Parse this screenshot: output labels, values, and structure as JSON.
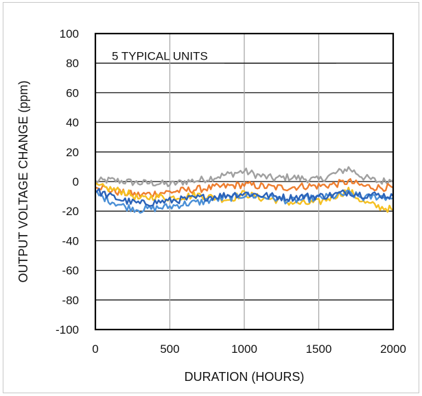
{
  "chart_data": {
    "type": "line",
    "title": "",
    "annotation": "5 TYPICAL UNITS",
    "xlabel": "DURATION (HOURS)",
    "ylabel": "OUTPUT VOLTAGE CHANGE (ppm)",
    "xlim": [
      0,
      2000
    ],
    "ylim": [
      -100,
      100
    ],
    "x_ticks": [
      "0",
      "500",
      "1000",
      "1500",
      "2000"
    ],
    "y_ticks": [
      "100",
      "80",
      "60",
      "40",
      "20",
      "0",
      "-20",
      "-40",
      "-60",
      "-80",
      "-100"
    ],
    "grid": true,
    "legend": "none",
    "x": [
      0,
      100,
      200,
      300,
      400,
      500,
      600,
      700,
      800,
      900,
      1000,
      1100,
      1200,
      1300,
      1400,
      1500,
      1600,
      1700,
      1800,
      1900,
      2000
    ],
    "series": [
      {
        "color": "#a0a0a0",
        "values": [
          0,
          1,
          0,
          -1,
          -1,
          -2,
          0,
          1,
          3,
          5,
          7,
          4,
          2,
          3,
          2,
          1,
          5,
          9,
          3,
          0,
          1
        ]
      },
      {
        "color": "#ee7d2e",
        "values": [
          -2,
          -6,
          -8,
          -9,
          -8,
          -7,
          -6,
          -5,
          -4,
          -3,
          -2,
          -3,
          -4,
          -4,
          -3,
          -3,
          -2,
          0,
          -3,
          -4,
          -4
        ]
      },
      {
        "color": "#f5c022",
        "values": [
          -3,
          -5,
          -7,
          -12,
          -10,
          -11,
          -10,
          -9,
          -11,
          -12,
          -8,
          -11,
          -12,
          -14,
          -15,
          -14,
          -10,
          -6,
          -14,
          -17,
          -19
        ]
      },
      {
        "color": "#4a8fd6",
        "values": [
          -8,
          -13,
          -17,
          -19,
          -18,
          -17,
          -15,
          -14,
          -12,
          -11,
          -9,
          -10,
          -11,
          -13,
          -12,
          -11,
          -10,
          -8,
          -11,
          -10,
          -11
        ]
      },
      {
        "color": "#2a62b8",
        "values": [
          -6,
          -10,
          -13,
          -15,
          -14,
          -13,
          -12,
          -11,
          -10,
          -9,
          -8,
          -9,
          -10,
          -11,
          -10,
          -10,
          -9,
          -7,
          -9,
          -9,
          -10
        ]
      }
    ]
  }
}
